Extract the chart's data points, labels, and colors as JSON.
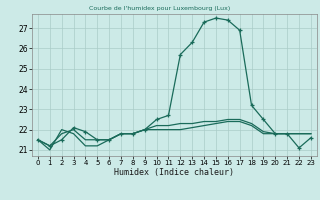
{
  "title": "",
  "xlabel": "Humidex (Indice chaleur)",
  "background_color": "#cceae7",
  "line_color": "#1a6b5a",
  "grid_color": "#aaccc8",
  "hours": [
    0,
    1,
    2,
    3,
    4,
    5,
    6,
    7,
    8,
    9,
    10,
    11,
    12,
    13,
    14,
    15,
    16,
    17,
    18,
    19,
    20,
    21,
    22,
    23
  ],
  "humidex": [
    21.5,
    21.2,
    21.5,
    22.1,
    21.9,
    21.5,
    21.5,
    21.8,
    21.8,
    22.0,
    22.5,
    22.7,
    25.7,
    26.3,
    27.3,
    27.5,
    27.4,
    26.9,
    23.2,
    22.5,
    21.8,
    21.8,
    21.1,
    21.6
  ],
  "temp": [
    21.5,
    21.2,
    21.8,
    22.0,
    21.5,
    21.5,
    21.5,
    21.8,
    21.8,
    22.0,
    22.2,
    22.2,
    22.3,
    22.3,
    22.4,
    22.4,
    22.5,
    22.5,
    22.3,
    21.9,
    21.8,
    21.8,
    21.8,
    21.8
  ],
  "dewpoint": [
    21.5,
    21.0,
    22.0,
    21.8,
    21.2,
    21.2,
    21.5,
    21.8,
    21.8,
    22.0,
    22.0,
    22.0,
    22.0,
    22.1,
    22.2,
    22.3,
    22.4,
    22.4,
    22.2,
    21.8,
    21.8,
    21.8,
    21.8,
    21.8
  ],
  "ylim": [
    20.7,
    27.7
  ],
  "yticks": [
    21,
    22,
    23,
    24,
    25,
    26,
    27
  ],
  "xlim": [
    -0.5,
    23.5
  ]
}
